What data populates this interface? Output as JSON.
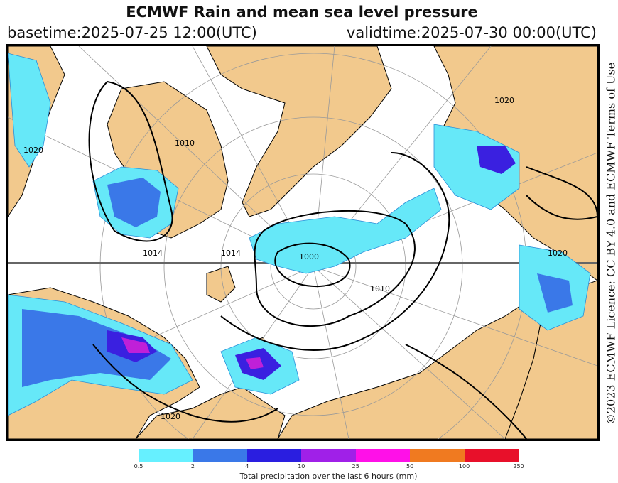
{
  "header": {
    "title": "ECMWF Rain and mean sea level pressure",
    "basetime": "basetime:2025-07-25 12:00(UTC)",
    "validtime": "validtime:2025-07-30 00:00(UTC)"
  },
  "side_text": "©2023 ECMWF Licence: CC BY 4.0 and ECMWF Terms of Use",
  "map": {
    "isobar_labels": [
      "1010",
      "1020",
      "1014",
      "1014",
      "1000",
      "1010",
      "1020",
      "1020",
      "1020"
    ],
    "colors": {
      "land": "#f2c98d",
      "ocean": "#ffffff",
      "rain_light": "#66e8f8",
      "rain_mid": "#3a78e8",
      "rain_heavy": "#3a20e0",
      "rain_extreme": "#c020d8"
    }
  },
  "legend": {
    "ticks": [
      "0.5",
      "2",
      "4",
      "10",
      "25",
      "50",
      "100",
      "250"
    ],
    "colors": [
      "#66f0ff",
      "#3a78e8",
      "#2a1ee0",
      "#a020e8",
      "#ff10e8",
      "#f07a20",
      "#e8102a"
    ],
    "caption": "Total precipitation over the last 6 hours (mm)"
  }
}
